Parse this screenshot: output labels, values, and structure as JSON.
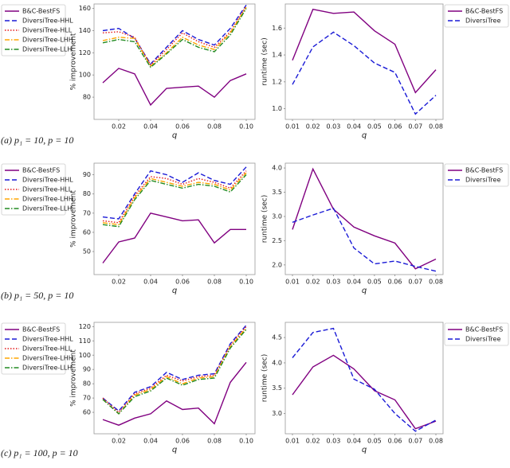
{
  "chart_data": [
    {
      "type": "line",
      "ylabel": "% improvement",
      "xlabel": "q",
      "legend": "left",
      "x": [
        0.01,
        0.02,
        0.03,
        0.04,
        0.05,
        0.06,
        0.07,
        0.08,
        0.09,
        0.1
      ],
      "xlim": [
        0.0045,
        0.1055
      ],
      "xticks": [
        0.02,
        0.04,
        0.06,
        0.08,
        {
          "value": 0.1,
          "label": "0.10"
        }
      ],
      "ylim": [
        60,
        164
      ],
      "yticks": [
        80,
        100,
        120,
        140,
        160
      ],
      "series": [
        {
          "name": "B&C-BestFS",
          "color": "#800080",
          "dash": "solid",
          "values": [
            93,
            106,
            101,
            73,
            88,
            89,
            90,
            80,
            95,
            101
          ]
        },
        {
          "name": "DiversiTree-HHL",
          "color": "#1a1ad6",
          "dash": "dashed",
          "values": [
            140,
            142,
            133,
            110,
            125,
            140,
            132,
            127,
            142,
            163
          ]
        },
        {
          "name": "DiversiTree-HLL",
          "color": "#e41a1c",
          "dash": "dotted",
          "values": [
            138,
            139,
            134,
            109,
            123,
            138,
            130,
            125,
            139,
            162
          ]
        },
        {
          "name": "DiversiTree-LHH",
          "color": "#ffa500",
          "dash": "dashdot",
          "values": [
            131,
            134,
            133,
            108,
            120,
            134,
            127,
            123,
            138,
            161
          ]
        },
        {
          "name": "DiversiTree-LLH",
          "color": "#228b22",
          "dash": "dashdot",
          "values": [
            129,
            132,
            130,
            107,
            119,
            132,
            125,
            121,
            136,
            160
          ]
        }
      ]
    },
    {
      "type": "line",
      "ylabel": "runtime (sec)",
      "xlabel": "q",
      "legend": "right",
      "x": [
        0.01,
        0.02,
        0.03,
        0.04,
        0.05,
        0.06,
        0.07,
        0.08
      ],
      "xlim": [
        0.0065,
        0.0835
      ],
      "xticks": [
        0.01,
        0.02,
        0.03,
        0.04,
        0.05,
        0.06,
        0.07,
        0.08
      ],
      "ylim": [
        0.92,
        1.78
      ],
      "yticks": [
        {
          "value": 1,
          "label": "1.0"
        },
        1.2,
        1.4,
        1.6
      ],
      "series": [
        {
          "name": "B&C-BestFS",
          "color": "#800080",
          "dash": "solid",
          "values": [
            1.36,
            1.74,
            1.71,
            1.72,
            1.58,
            1.48,
            1.12,
            1.29
          ]
        },
        {
          "name": "DiversiTree",
          "color": "#1a1ad6",
          "dash": "dashed",
          "values": [
            1.18,
            1.46,
            1.57,
            1.47,
            1.34,
            1.27,
            0.96,
            1.1
          ]
        }
      ]
    },
    {
      "type": "line",
      "ylabel": "% improvement",
      "xlabel": "q",
      "legend": "left",
      "x": [
        0.01,
        0.02,
        0.03,
        0.04,
        0.05,
        0.06,
        0.07,
        0.08,
        0.09,
        0.1
      ],
      "xlim": [
        0.0045,
        0.1055
      ],
      "xticks": [
        0.02,
        0.04,
        0.06,
        0.08,
        {
          "value": 0.1,
          "label": "0.10"
        }
      ],
      "ylim": [
        38,
        96
      ],
      "yticks": [
        50,
        60,
        70,
        80,
        90
      ],
      "series": [
        {
          "name": "B&C-BestFS",
          "color": "#800080",
          "dash": "solid",
          "values": [
            44,
            55,
            57,
            70,
            68,
            66,
            66.5,
            54.5,
            61.5,
            61.5
          ]
        },
        {
          "name": "DiversiTree-HHL",
          "color": "#1a1ad6",
          "dash": "dashed",
          "values": [
            68,
            67,
            80,
            92,
            90,
            86,
            91,
            87,
            85,
            94
          ]
        },
        {
          "name": "DiversiTree-HLL",
          "color": "#e41a1c",
          "dash": "dotted",
          "values": [
            66,
            65,
            79,
            89,
            88,
            85,
            88,
            86,
            83,
            92
          ]
        },
        {
          "name": "DiversiTree-LHH",
          "color": "#ffa500",
          "dash": "dashdot",
          "values": [
            65,
            64,
            78,
            88,
            86,
            84,
            86,
            85,
            82,
            91
          ]
        },
        {
          "name": "DiversiTree-LLH",
          "color": "#228b22",
          "dash": "dashdot",
          "values": [
            64,
            63,
            77,
            87,
            85,
            83,
            85,
            84,
            81,
            90
          ]
        }
      ]
    },
    {
      "type": "line",
      "ylabel": "runtime (sec)",
      "xlabel": "q",
      "legend": "right",
      "x": [
        0.01,
        0.02,
        0.03,
        0.04,
        0.05,
        0.06,
        0.07,
        0.08
      ],
      "xlim": [
        0.0065,
        0.0835
      ],
      "xticks": [
        0.01,
        0.02,
        0.03,
        0.04,
        0.05,
        0.06,
        0.07,
        0.08
      ],
      "ylim": [
        1.8,
        4.1
      ],
      "yticks": [
        {
          "value": 2,
          "label": "2.0"
        },
        2.5,
        {
          "value": 3,
          "label": "3.0"
        },
        3.5,
        {
          "value": 4,
          "label": "4.0"
        }
      ],
      "series": [
        {
          "name": "B&C-BestFS",
          "color": "#800080",
          "dash": "solid",
          "values": [
            2.73,
            3.98,
            3.15,
            2.78,
            2.6,
            2.45,
            1.92,
            2.12
          ]
        },
        {
          "name": "DiversiTree",
          "color": "#1a1ad6",
          "dash": "dashed",
          "values": [
            2.88,
            3.03,
            3.17,
            2.35,
            2.02,
            2.08,
            1.97,
            1.87
          ]
        }
      ]
    },
    {
      "type": "line",
      "ylabel": "% improvement",
      "xlabel": "q",
      "legend": "left",
      "x": [
        0.01,
        0.02,
        0.03,
        0.04,
        0.05,
        0.06,
        0.07,
        0.08,
        0.09,
        0.1
      ],
      "xlim": [
        0.0045,
        0.1055
      ],
      "xticks": [
        0.02,
        0.04,
        0.06,
        0.08,
        {
          "value": 0.1,
          "label": "0.10"
        }
      ],
      "ylim": [
        45,
        123
      ],
      "yticks": [
        60,
        70,
        80,
        90,
        100,
        110,
        120
      ],
      "series": [
        {
          "name": "B&C-BestFS",
          "color": "#800080",
          "dash": "solid",
          "values": [
            55,
            51,
            56,
            59,
            68,
            62,
            63,
            52,
            81,
            95
          ]
        },
        {
          "name": "DiversiTree-HHL",
          "color": "#1a1ad6",
          "dash": "dashed",
          "values": [
            70,
            61,
            74,
            78,
            88,
            83,
            86,
            87,
            108,
            121
          ]
        },
        {
          "name": "DiversiTree-HLL",
          "color": "#e41a1c",
          "dash": "dotted",
          "values": [
            70,
            60,
            73,
            77,
            86,
            82,
            85,
            86,
            107,
            120
          ]
        },
        {
          "name": "DiversiTree-LHH",
          "color": "#ffa500",
          "dash": "dashdot",
          "values": [
            69,
            59,
            72,
            76,
            85,
            80,
            84,
            85,
            106,
            119
          ]
        },
        {
          "name": "DiversiTree-LLH",
          "color": "#228b22",
          "dash": "dashdot",
          "values": [
            69,
            59,
            71,
            75,
            84,
            79,
            83,
            84,
            105,
            118
          ]
        }
      ]
    },
    {
      "type": "line",
      "ylabel": "runtime (sec)",
      "xlabel": "q",
      "legend": "right",
      "x": [
        0.01,
        0.02,
        0.03,
        0.04,
        0.05,
        0.06,
        0.07,
        0.08
      ],
      "xlim": [
        0.0065,
        0.0835
      ],
      "xticks": [
        0.01,
        0.02,
        0.03,
        0.04,
        0.05,
        0.06,
        0.07,
        0.08
      ],
      "ylim": [
        2.6,
        4.8
      ],
      "yticks": [
        {
          "value": 3,
          "label": "3.0"
        },
        3.5,
        {
          "value": 4,
          "label": "4.0"
        },
        4.5
      ],
      "series": [
        {
          "name": "B&C-BestFS",
          "color": "#800080",
          "dash": "solid",
          "values": [
            3.37,
            3.92,
            4.15,
            3.88,
            3.45,
            3.27,
            2.7,
            2.85
          ]
        },
        {
          "name": "DiversiTree",
          "color": "#1a1ad6",
          "dash": "dashed",
          "values": [
            4.1,
            4.6,
            4.68,
            3.68,
            3.48,
            3.0,
            2.65,
            2.87
          ]
        }
      ]
    }
  ],
  "captions": [
    "(a) p₁ = 10, p = 10",
    "(b) p₁ = 50, p = 10",
    "(c) p₁ = 100, p = 10"
  ]
}
